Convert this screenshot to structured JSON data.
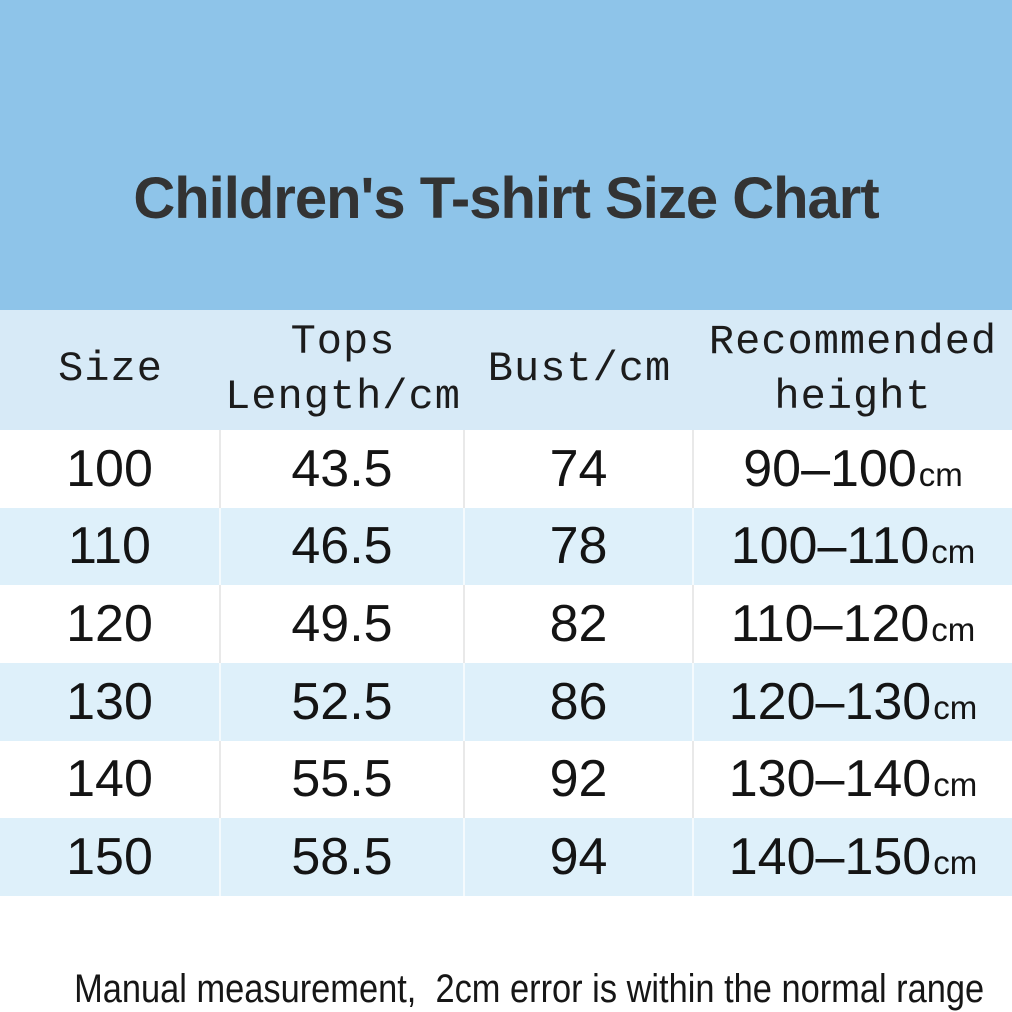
{
  "title": "Children's T-shirt Size Chart",
  "colors": {
    "banner_blue": "#8EC4E9",
    "header_row_blue": "#D7EAF7",
    "alt_row_blue": "#DEF0FA",
    "title_text": "#333333",
    "body_text": "#141414"
  },
  "table": {
    "columns": [
      {
        "id": "size",
        "label": "Size"
      },
      {
        "id": "tops_length",
        "label": "Tops\nLength/cm"
      },
      {
        "id": "bust",
        "label": "Bust/cm"
      },
      {
        "id": "height",
        "label": "Recommended\nheight"
      }
    ],
    "rows": [
      {
        "size": "100",
        "tops_length": "43.5",
        "bust": "74",
        "height_range": "90–100",
        "height_unit": "cm"
      },
      {
        "size": "110",
        "tops_length": "46.5",
        "bust": "78",
        "height_range": "100–110",
        "height_unit": "cm"
      },
      {
        "size": "120",
        "tops_length": "49.5",
        "bust": "82",
        "height_range": "110–120",
        "height_unit": "cm"
      },
      {
        "size": "130",
        "tops_length": "52.5",
        "bust": "86",
        "height_range": "120–130",
        "height_unit": "cm"
      },
      {
        "size": "140",
        "tops_length": "55.5",
        "bust": "92",
        "height_range": "130–140",
        "height_unit": "cm"
      },
      {
        "size": "150",
        "tops_length": "58.5",
        "bust": "94",
        "height_range": "140–150",
        "height_unit": "cm"
      }
    ]
  },
  "footnote": "Manual measurement,  2cm error is within the normal range",
  "chart_data": {
    "type": "table",
    "title": "Children's T-shirt Size Chart",
    "columns": [
      "Size",
      "Tops Length/cm",
      "Bust/cm",
      "Recommended height"
    ],
    "rows": [
      [
        "100",
        "43.5",
        "74",
        "90–100cm"
      ],
      [
        "110",
        "46.5",
        "78",
        "100–110cm"
      ],
      [
        "120",
        "49.5",
        "82",
        "110–120cm"
      ],
      [
        "130",
        "52.5",
        "86",
        "120–130cm"
      ],
      [
        "140",
        "55.5",
        "92",
        "130–140cm"
      ],
      [
        "150",
        "58.5",
        "94",
        "140–150cm"
      ]
    ],
    "footnote": "Manual measurement, 2cm error is within the normal range"
  }
}
